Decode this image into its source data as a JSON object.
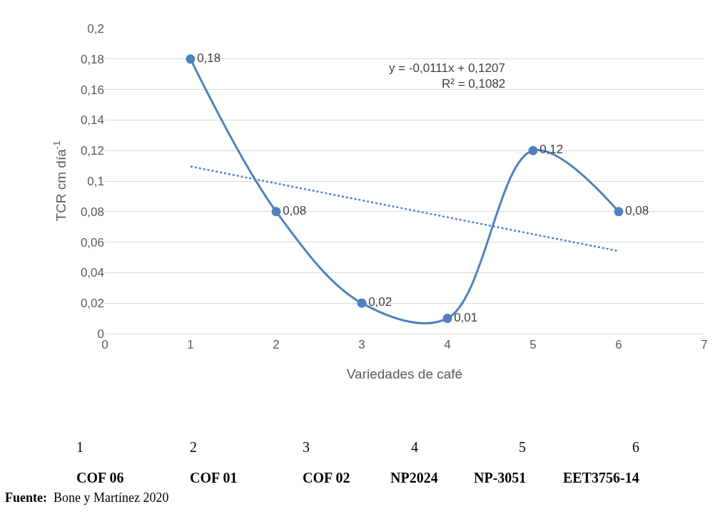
{
  "chart_data": {
    "type": "line",
    "xlabel": "Variedades de café",
    "ylabel": "TCR cm día$^{-1}$",
    "x": [
      1,
      2,
      3,
      4,
      5,
      6
    ],
    "series": [
      {
        "color": "#4f81bd",
        "values": [
          0.18,
          0.08,
          0.02,
          0.01,
          0.12,
          0.08
        ],
        "value_labels": [
          "0,18",
          "0,08",
          "0,02",
          "0,01",
          "0,12",
          "0,08"
        ],
        "marker": "circle",
        "line_style": "solid"
      },
      {
        "type": "line",
        "color": "#4f81bd",
        "x": [
          1,
          6
        ],
        "values": [
          0.1096,
          0.0541
        ],
        "marker": "none",
        "line_style": "dotted"
      }
    ],
    "xlim": [
      0,
      7
    ],
    "xticks": [
      0,
      1,
      2,
      3,
      4,
      5,
      6,
      7
    ],
    "ylim": [
      0,
      0.2
    ],
    "yticks": [
      {
        "value": 0,
        "label": "0"
      },
      {
        "value": 0.02,
        "label": "0,02"
      },
      {
        "value": 0.04,
        "label": "0,04"
      },
      {
        "value": 0.06,
        "label": "0,06"
      },
      {
        "value": 0.08,
        "label": "0,08"
      },
      {
        "value": 0.1,
        "label": "0,1"
      },
      {
        "value": 0.12,
        "label": "0,12"
      },
      {
        "value": 0.14,
        "label": "0,14"
      },
      {
        "value": 0.16,
        "label": "0,16"
      },
      {
        "value": 0.18,
        "label": "0,18"
      },
      {
        "value": 0.2,
        "label": "0,2"
      }
    ],
    "grid": "y",
    "annotations": [
      "y = -0,0111x + 0,1207",
      "R² = 0,1082",
      "1",
      "2",
      "3",
      "4",
      "5",
      "6",
      "COF 06",
      "COF 01",
      "COF 02",
      "NP2024",
      "NP-3051",
      "EET3756-14",
      "Fuente:  Bone y Martínez 2020"
    ]
  }
}
